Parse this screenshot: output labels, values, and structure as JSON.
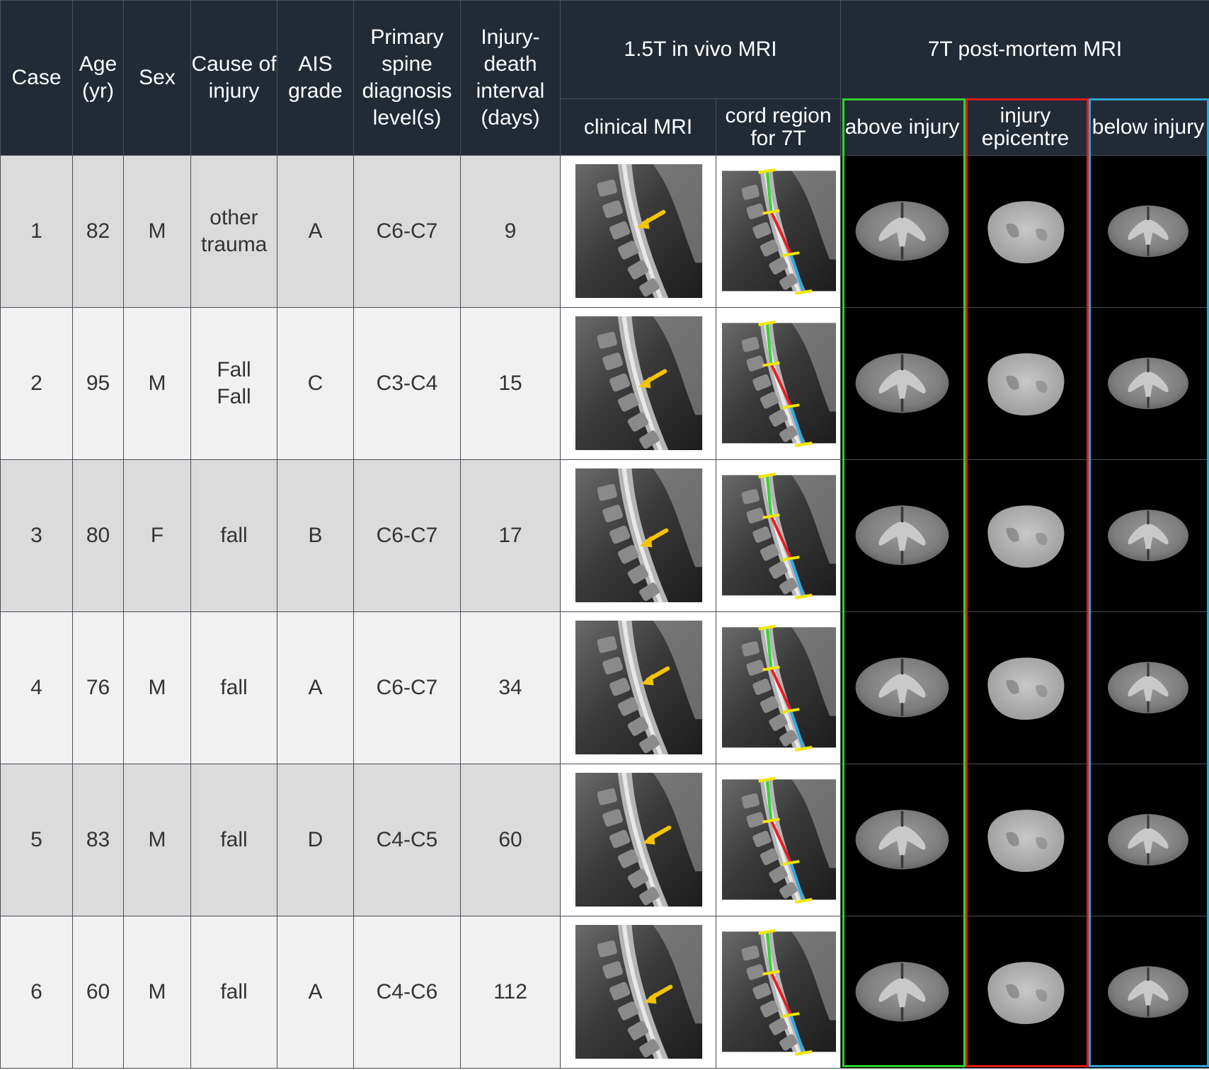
{
  "headers": {
    "case": "Case",
    "age": "Age (yr)",
    "sex": "Sex",
    "cause": "Cause of injury",
    "ais": "AIS grade",
    "level": "Primary spine diagnosis level(s)",
    "interval": "Injury-death interval (days)",
    "invivo_group": "1.5T in vivo MRI",
    "postmortem_group": "7T post-mortem MRI",
    "clinical": "clinical MRI",
    "cord_region": "cord region for 7T",
    "above": "above injury",
    "epicentre": "injury epicentre",
    "below": "below injury"
  },
  "frame_colors": {
    "above": "#2fd12f",
    "epicentre": "#e01818",
    "below": "#2aa7de"
  },
  "arrow_colors": {
    "lesion_arrow": "#f5c400",
    "boundary_marker": "#f2e600",
    "above_segment": "#3ad13a",
    "epicentre_segment": "#e42020",
    "below_segment": "#33a8e6"
  },
  "rows": [
    {
      "case": "1",
      "age": "82",
      "sex": "M",
      "cause": "other trauma",
      "ais": "A",
      "level": "C6-C7",
      "interval": "9"
    },
    {
      "case": "2",
      "age": "95",
      "sex": "M",
      "cause": "Fall Fall",
      "ais": "C",
      "level": "C3-C4",
      "interval": "15"
    },
    {
      "case": "3",
      "age": "80",
      "sex": "F",
      "cause": "fall",
      "ais": "B",
      "level": "C6-C7",
      "interval": "17"
    },
    {
      "case": "4",
      "age": "76",
      "sex": "M",
      "cause": "fall",
      "ais": "A",
      "level": "C6-C7",
      "interval": "34"
    },
    {
      "case": "5",
      "age": "83",
      "sex": "M",
      "cause": "fall",
      "ais": "D",
      "level": "C4-C5",
      "interval": "60"
    },
    {
      "case": "6",
      "age": "60",
      "sex": "M",
      "cause": "fall",
      "ais": "A",
      "level": "C4-C6",
      "interval": "112"
    }
  ]
}
